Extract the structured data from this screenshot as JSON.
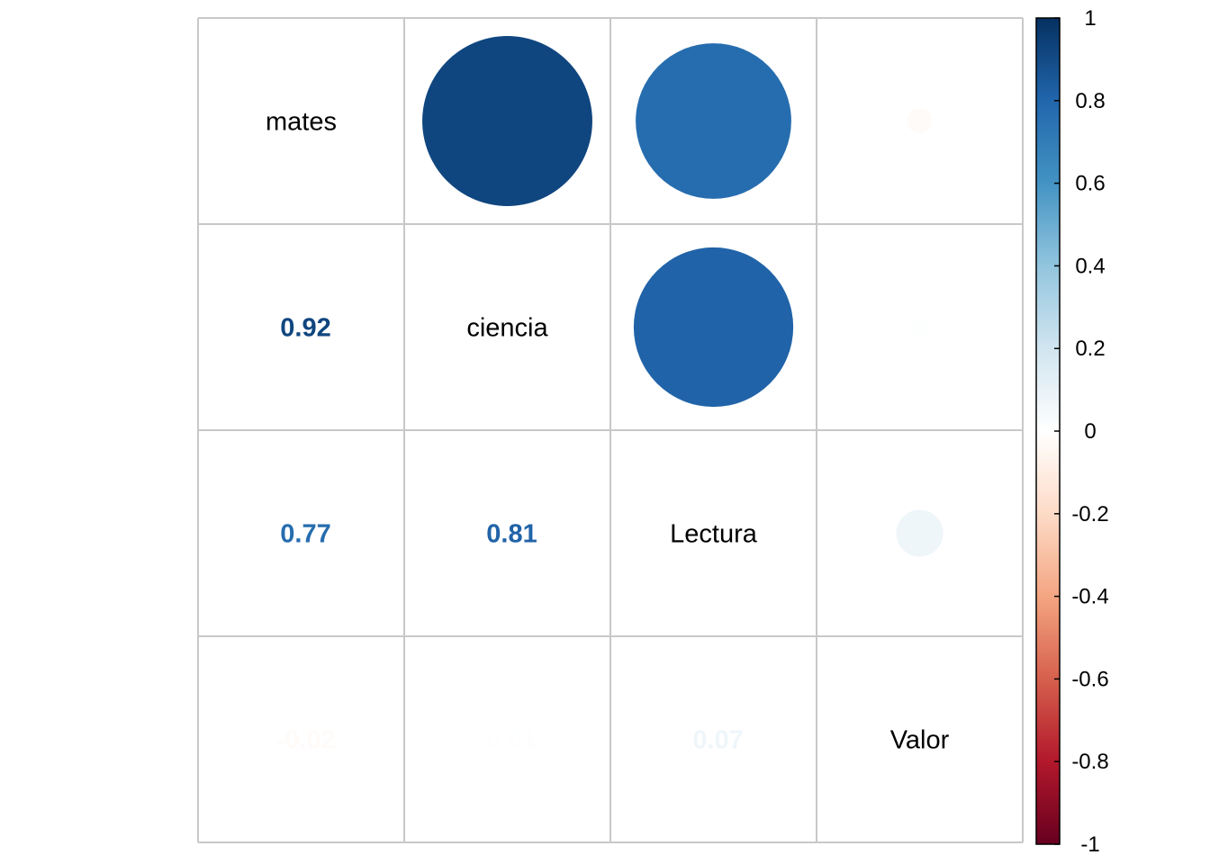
{
  "chart_data": {
    "type": "heatmap",
    "variables": [
      "mates",
      "ciencia",
      "Lectura",
      "Valor"
    ],
    "correlations": [
      [
        1.0,
        0.92,
        0.77,
        -0.02
      ],
      [
        0.92,
        1.0,
        0.81,
        0.01
      ],
      [
        0.77,
        0.81,
        1.0,
        0.07
      ],
      [
        -0.02,
        0.01,
        0.07,
        1.0
      ]
    ],
    "lower_labels": [
      {
        "row": 1,
        "col": 0,
        "text": "0.92"
      },
      {
        "row": 2,
        "col": 0,
        "text": "0.77"
      },
      {
        "row": 2,
        "col": 1,
        "text": "0.81"
      },
      {
        "row": 3,
        "col": 0,
        "text": "-0.02"
      },
      {
        "row": 3,
        "col": 1,
        "text": "0.01"
      },
      {
        "row": 3,
        "col": 2,
        "text": "0.07"
      }
    ],
    "upper_display": "circle",
    "lower_display": "number",
    "colorbar": {
      "range": [
        -1,
        1
      ],
      "ticks": [
        "1",
        "0.8",
        "0.6",
        "0.4",
        "0.2",
        "0",
        "-0.2",
        "-0.4",
        "-0.6",
        "-0.8",
        "-1"
      ],
      "colors": {
        "neg1": "#67001f",
        "neg05": "#d6604d",
        "zero": "#ffffff",
        "pos05": "#4393c3",
        "pos1": "#053061"
      }
    },
    "grid": true
  }
}
